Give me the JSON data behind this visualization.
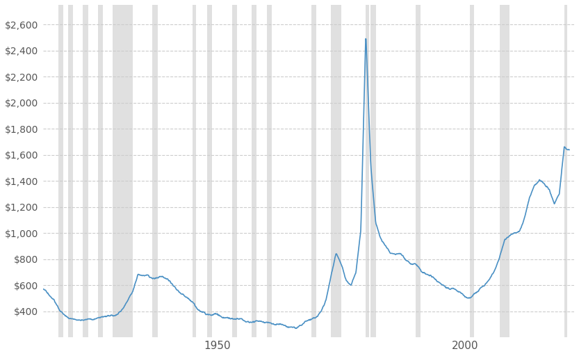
{
  "title": "",
  "line_color": "#4a90c4",
  "background_color": "#ffffff",
  "grid_color": "#cccccc",
  "shade_color": "#e0e0e0",
  "ylim": [
    200,
    2750
  ],
  "yticks": [
    400,
    600,
    800,
    1000,
    1200,
    1400,
    1600,
    1800,
    2000,
    2200,
    2400,
    2600
  ],
  "xlim": [
    1915,
    2022
  ],
  "xticks": [
    1950,
    2000
  ],
  "recession_bands": [
    [
      1918,
      1919
    ],
    [
      1920,
      1921
    ],
    [
      1923,
      1924
    ],
    [
      1926,
      1927
    ],
    [
      1929,
      1933
    ],
    [
      1937,
      1938
    ],
    [
      1945,
      1945.8
    ],
    [
      1948,
      1949
    ],
    [
      1953,
      1954
    ],
    [
      1957,
      1958
    ],
    [
      1960,
      1961
    ],
    [
      1969,
      1970
    ],
    [
      1973,
      1975
    ],
    [
      1980,
      1980.6
    ],
    [
      1981,
      1982
    ],
    [
      1990,
      1991
    ],
    [
      2001,
      2001.8
    ],
    [
      2007,
      2009
    ],
    [
      2020,
      2020.6
    ]
  ],
  "years": [
    1915,
    1916,
    1917,
    1918,
    1919,
    1920,
    1921,
    1922,
    1923,
    1924,
    1925,
    1926,
    1927,
    1928,
    1929,
    1930,
    1931,
    1932,
    1933,
    1934,
    1935,
    1936,
    1937,
    1938,
    1939,
    1940,
    1941,
    1942,
    1943,
    1944,
    1945,
    1946,
    1947,
    1948,
    1949,
    1950,
    1951,
    1952,
    1953,
    1954,
    1955,
    1956,
    1957,
    1958,
    1959,
    1960,
    1961,
    1962,
    1963,
    1964,
    1965,
    1966,
    1967,
    1968,
    1969,
    1970,
    1971,
    1972,
    1973,
    1974,
    1975,
    1976,
    1977,
    1978,
    1979,
    1980,
    1981,
    1982,
    1983,
    1984,
    1985,
    1986,
    1987,
    1988,
    1989,
    1990,
    1991,
    1992,
    1993,
    1994,
    1995,
    1996,
    1997,
    1998,
    1999,
    2000,
    2001,
    2002,
    2003,
    2004,
    2005,
    2006,
    2007,
    2008,
    2009,
    2010,
    2011,
    2012,
    2013,
    2014,
    2015,
    2016,
    2017,
    2018,
    2019,
    2020,
    2021
  ],
  "prices": [
    570,
    530,
    490,
    430,
    380,
    340,
    325,
    330,
    335,
    340,
    345,
    348,
    352,
    355,
    350,
    358,
    395,
    445,
    505,
    625,
    635,
    642,
    618,
    632,
    635,
    628,
    585,
    538,
    502,
    474,
    452,
    418,
    388,
    368,
    370,
    378,
    358,
    362,
    368,
    378,
    382,
    372,
    368,
    382,
    376,
    368,
    362,
    353,
    347,
    342,
    337,
    328,
    338,
    368,
    382,
    388,
    428,
    528,
    715,
    875,
    795,
    678,
    638,
    718,
    1055,
    2580,
    1550,
    1095,
    982,
    918,
    858,
    842,
    842,
    786,
    754,
    752,
    716,
    678,
    668,
    656,
    638,
    596,
    576,
    566,
    536,
    496,
    486,
    518,
    566,
    596,
    636,
    716,
    818,
    948,
    976,
    998,
    1018,
    1128,
    1278,
    1378,
    1418,
    1376,
    1338,
    1238,
    1308,
    1678,
    1638
  ]
}
